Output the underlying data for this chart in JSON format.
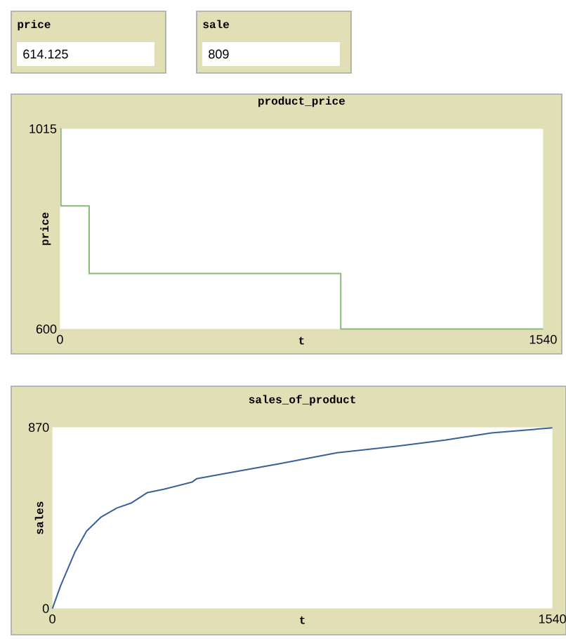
{
  "chart_data": [
    {
      "type": "other",
      "title": "price",
      "annotations": [
        "614.125"
      ]
    },
    {
      "type": "other",
      "title": "sale",
      "annotations": [
        "809"
      ]
    },
    {
      "type": "step",
      "title": "product_price",
      "xlabel": "t",
      "ylabel": "price",
      "x": [
        0,
        3,
        93,
        895,
        1540
      ],
      "values": [
        1015,
        855,
        715,
        600,
        600
      ],
      "color": "#8cb87a",
      "xlim": [
        0,
        1540
      ],
      "ylim": [
        600,
        1015
      ],
      "xticks": [
        0,
        1540
      ],
      "yticks": [
        600,
        1015
      ]
    },
    {
      "type": "line",
      "title": "sales_of_product",
      "xlabel": "t",
      "ylabel": "sales",
      "x": [
        0,
        26,
        69,
        105,
        149,
        199,
        242,
        293,
        343,
        430,
        444,
        560,
        704,
        877,
        1064,
        1209,
        1353,
        1540
      ],
      "values": [
        0,
        112,
        270,
        371,
        438,
        483,
        506,
        557,
        573,
        607,
        623,
        656,
        697,
        748,
        780,
        809,
        843,
        868
      ],
      "color": "#3b5f9a",
      "xlim": [
        0,
        1540
      ],
      "ylim": [
        0,
        870
      ],
      "xticks": [
        0,
        1540
      ],
      "yticks": [
        0,
        870
      ]
    }
  ]
}
